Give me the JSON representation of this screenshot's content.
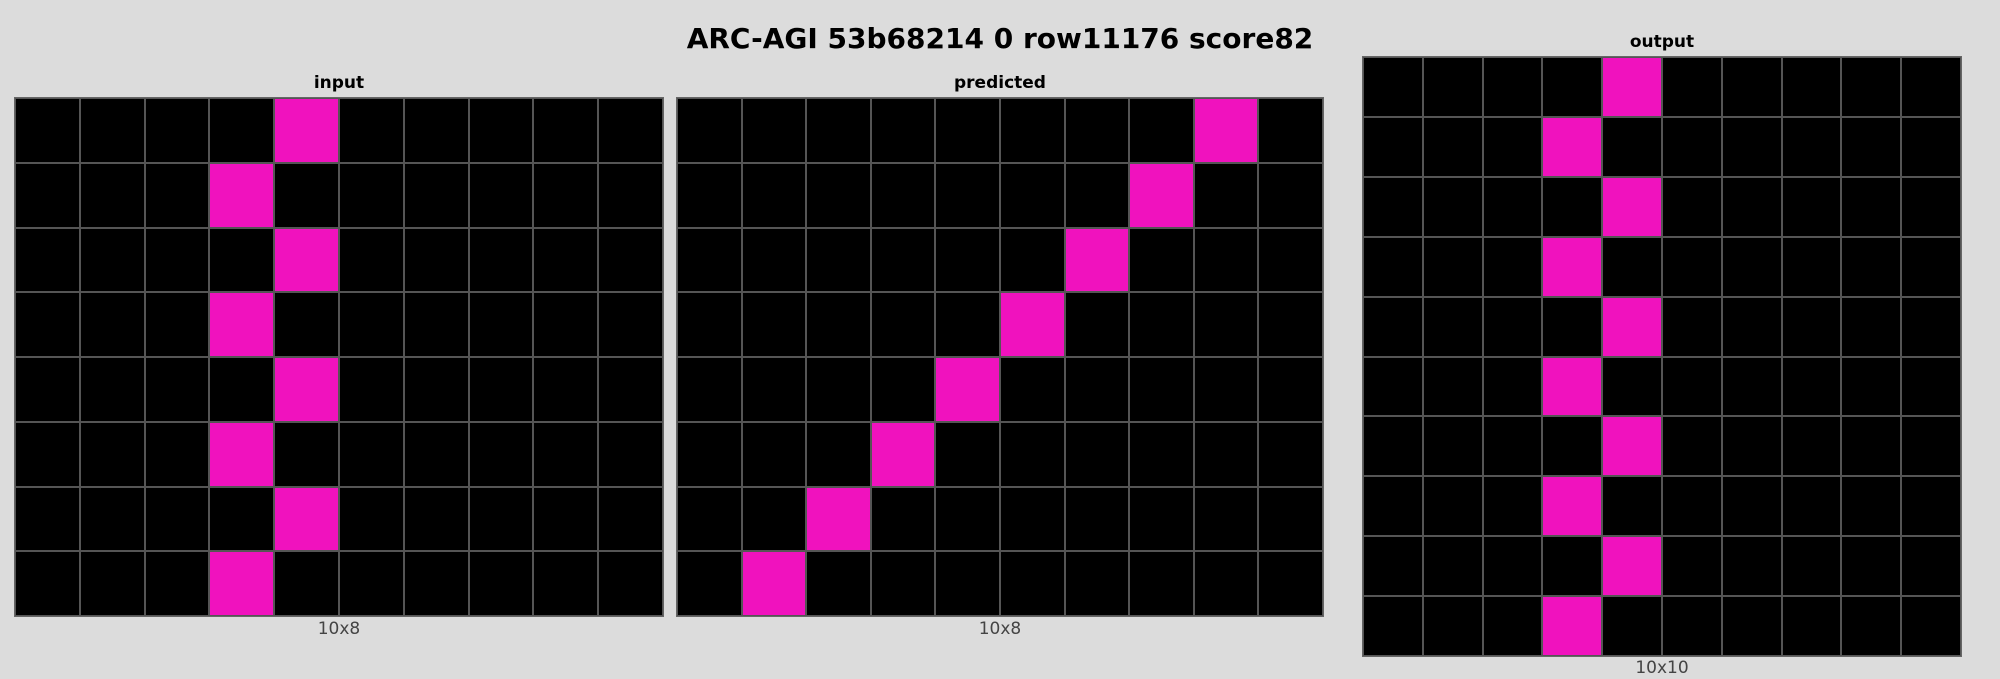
{
  "title": "ARC-AGI 53b68214 0 row11176 score82",
  "palette": {
    "0": "#000000",
    "6": "#f012be"
  },
  "panels": [
    {
      "title": "input",
      "caption": "10x8",
      "cols": 10,
      "rows": 8,
      "cells": [
        [
          0,
          0,
          0,
          0,
          6,
          0,
          0,
          0,
          0,
          0
        ],
        [
          0,
          0,
          0,
          6,
          0,
          0,
          0,
          0,
          0,
          0
        ],
        [
          0,
          0,
          0,
          0,
          6,
          0,
          0,
          0,
          0,
          0
        ],
        [
          0,
          0,
          0,
          6,
          0,
          0,
          0,
          0,
          0,
          0
        ],
        [
          0,
          0,
          0,
          0,
          6,
          0,
          0,
          0,
          0,
          0
        ],
        [
          0,
          0,
          0,
          6,
          0,
          0,
          0,
          0,
          0,
          0
        ],
        [
          0,
          0,
          0,
          0,
          6,
          0,
          0,
          0,
          0,
          0
        ],
        [
          0,
          0,
          0,
          6,
          0,
          0,
          0,
          0,
          0,
          0
        ]
      ]
    },
    {
      "title": "predicted",
      "caption": "10x8",
      "cols": 10,
      "rows": 8,
      "cells": [
        [
          0,
          0,
          0,
          0,
          0,
          0,
          0,
          0,
          6,
          0
        ],
        [
          0,
          0,
          0,
          0,
          0,
          0,
          0,
          6,
          0,
          0
        ],
        [
          0,
          0,
          0,
          0,
          0,
          0,
          6,
          0,
          0,
          0
        ],
        [
          0,
          0,
          0,
          0,
          0,
          6,
          0,
          0,
          0,
          0
        ],
        [
          0,
          0,
          0,
          0,
          6,
          0,
          0,
          0,
          0,
          0
        ],
        [
          0,
          0,
          0,
          6,
          0,
          0,
          0,
          0,
          0,
          0
        ],
        [
          0,
          0,
          6,
          0,
          0,
          0,
          0,
          0,
          0,
          0
        ],
        [
          0,
          6,
          0,
          0,
          0,
          0,
          0,
          0,
          0,
          0
        ]
      ]
    },
    {
      "title": "output",
      "caption": "10x10",
      "cols": 10,
      "rows": 10,
      "cells": [
        [
          0,
          0,
          0,
          0,
          6,
          0,
          0,
          0,
          0,
          0
        ],
        [
          0,
          0,
          0,
          6,
          0,
          0,
          0,
          0,
          0,
          0
        ],
        [
          0,
          0,
          0,
          0,
          6,
          0,
          0,
          0,
          0,
          0
        ],
        [
          0,
          0,
          0,
          6,
          0,
          0,
          0,
          0,
          0,
          0
        ],
        [
          0,
          0,
          0,
          0,
          6,
          0,
          0,
          0,
          0,
          0
        ],
        [
          0,
          0,
          0,
          6,
          0,
          0,
          0,
          0,
          0,
          0
        ],
        [
          0,
          0,
          0,
          0,
          6,
          0,
          0,
          0,
          0,
          0
        ],
        [
          0,
          0,
          0,
          6,
          0,
          0,
          0,
          0,
          0,
          0
        ],
        [
          0,
          0,
          0,
          0,
          6,
          0,
          0,
          0,
          0,
          0
        ],
        [
          0,
          0,
          0,
          6,
          0,
          0,
          0,
          0,
          0,
          0
        ]
      ]
    }
  ]
}
